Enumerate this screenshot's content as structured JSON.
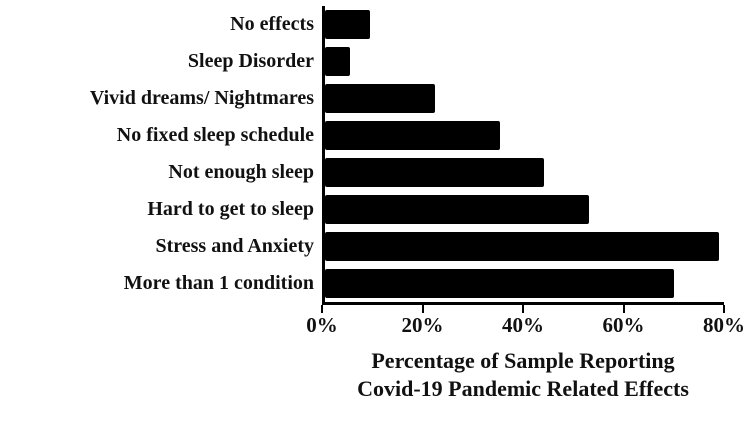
{
  "chart_data": {
    "type": "bar",
    "orientation": "horizontal",
    "title": "",
    "categories": [
      "No effects",
      "Sleep Disorder",
      "Vivid dreams/ Nightmares",
      "No fixed sleep schedule",
      "Not enough sleep",
      "Hard to get to sleep",
      "Stress and Anxiety",
      "More than 1 condition"
    ],
    "values": [
      9,
      5,
      22,
      35,
      44,
      53,
      79,
      70
    ],
    "unit": "%",
    "xlim": [
      0,
      80
    ],
    "x_tick_labels": [
      "0%",
      "20%",
      "40%",
      "60%",
      "80%"
    ],
    "x_tick_values": [
      0,
      20,
      40,
      60,
      80
    ],
    "xlabel_line1": "Percentage of Sample Reporting",
    "xlabel_line2": "Covid-19 Pandemic Related Effects",
    "ylabel": "",
    "legend": "none",
    "grid": "off",
    "bar_color": "#000000",
    "background_color": "#ffffff"
  }
}
